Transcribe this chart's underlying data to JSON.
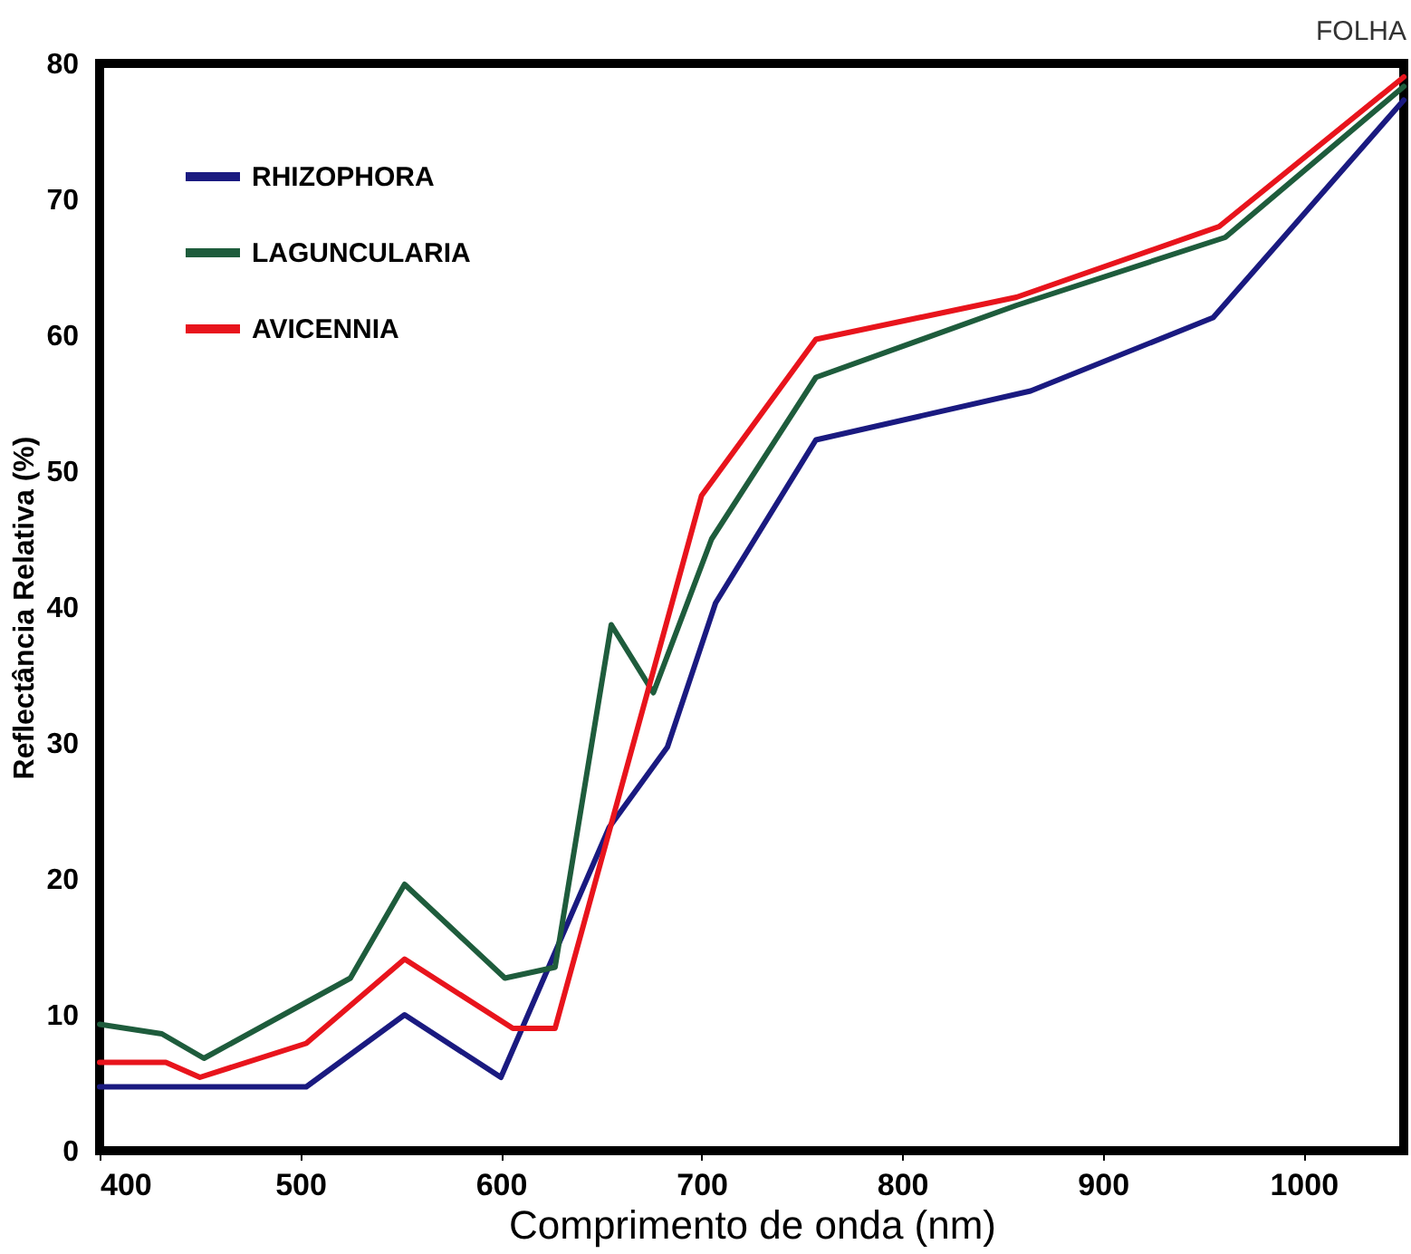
{
  "chart_data": {
    "type": "line",
    "title": "FOLHA",
    "xlabel": "Comprimento de onda (nm)",
    "ylabel": "Reflectância Relativa (%)",
    "xlim": [
      400,
      1050
    ],
    "ylim": [
      0,
      80
    ],
    "xticks": [
      400,
      500,
      600,
      700,
      800,
      900,
      1000
    ],
    "yticks": [
      0,
      10,
      20,
      30,
      40,
      50,
      60,
      70,
      80
    ],
    "grid": false,
    "legend": "top left",
    "marker": "none",
    "line_style": "solid",
    "series": [
      {
        "name": "RHIZOPHORA",
        "color": "#1a1a80",
        "x": [
          400,
          503,
          552,
          600,
          654,
          683,
          707,
          757,
          864,
          955,
          1050
        ],
        "values": [
          4.7,
          4.7,
          10,
          5.4,
          23.8,
          29.7,
          40.3,
          52.3,
          55.9,
          61.3,
          77.3
        ]
      },
      {
        "name": "LAGUNCULARIA",
        "color": "#1e5c3c",
        "x": [
          400,
          431,
          452,
          525,
          552,
          602,
          627,
          655,
          676,
          705,
          757,
          857,
          961,
          1050
        ],
        "values": [
          9.3,
          8.6,
          6.8,
          12.7,
          19.6,
          12.7,
          13.5,
          38.7,
          33.7,
          45,
          56.9,
          62.2,
          67.2,
          78.3
        ]
      },
      {
        "name": "AVICENNIA",
        "color": "#e8141c",
        "x": [
          400,
          433,
          450,
          503,
          552,
          606,
          627,
          700,
          757,
          857,
          958,
          1050
        ],
        "values": [
          6.5,
          6.5,
          5.4,
          7.9,
          14.1,
          9,
          9,
          48.2,
          59.7,
          62.8,
          68,
          79
        ]
      }
    ]
  }
}
